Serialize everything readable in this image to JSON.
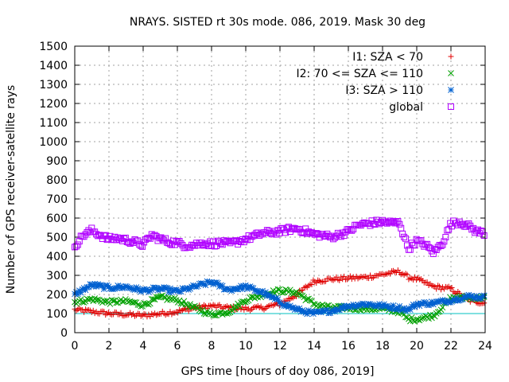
{
  "chart_data": {
    "type": "scatter",
    "title": "NRAYS. SISTED rt 30s mode. 086, 2019. Mask 30 deg",
    "xlabel": "GPS time [hours of doy 086, 2019]",
    "ylabel": "Number of GPS receiver-satellite rays",
    "xlim": [
      0,
      24
    ],
    "ylim": [
      0,
      1500
    ],
    "xticks": [
      0,
      2,
      4,
      6,
      8,
      10,
      12,
      14,
      16,
      18,
      20,
      22,
      24
    ],
    "yticks": [
      0,
      100,
      200,
      300,
      400,
      500,
      600,
      700,
      800,
      900,
      1000,
      1100,
      1200,
      1300,
      1400,
      1500
    ],
    "grid": true,
    "legend_position": "top-right",
    "reference_line": {
      "y": 100,
      "color": "#00c0c0"
    },
    "series": [
      {
        "name": "I1: SZA < 70",
        "marker": "plus",
        "color": "#e00000",
        "x": [
          0,
          1,
          2,
          3,
          4,
          5,
          6,
          7,
          8,
          9,
          10,
          11,
          12,
          13,
          14,
          15,
          16,
          17,
          18,
          19,
          19.5,
          20,
          21,
          22,
          23,
          24
        ],
        "y": [
          120,
          110,
          100,
          95,
          90,
          100,
          110,
          130,
          140,
          130,
          125,
          130,
          150,
          200,
          270,
          280,
          285,
          290,
          305,
          320,
          290,
          280,
          240,
          230,
          170,
          155
        ]
      },
      {
        "name": "I2: 70 <= SZA <= 110",
        "marker": "cross",
        "color": "#00a000",
        "x": [
          0,
          1,
          2,
          3,
          4,
          5,
          6,
          7,
          8,
          9,
          10,
          11,
          12,
          13,
          14,
          15,
          16,
          17,
          18,
          19,
          19.5,
          20,
          21,
          22,
          23,
          24
        ],
        "y": [
          160,
          175,
          160,
          165,
          145,
          185,
          170,
          130,
          95,
          110,
          170,
          200,
          220,
          210,
          150,
          130,
          130,
          125,
          125,
          110,
          70,
          70,
          90,
          180,
          185,
          180
        ]
      },
      {
        "name": "I3: SZA > 110",
        "marker": "star",
        "color": "#0060d0",
        "x": [
          0,
          1,
          2,
          3,
          4,
          5,
          6,
          7,
          8,
          9,
          10,
          11,
          12,
          13,
          14,
          15,
          16,
          17,
          18,
          19,
          19.5,
          20,
          21,
          22,
          23,
          24
        ],
        "y": [
          200,
          250,
          235,
          240,
          220,
          230,
          215,
          240,
          265,
          225,
          240,
          210,
          160,
          120,
          100,
          115,
          140,
          150,
          140,
          130,
          120,
          150,
          155,
          170,
          190,
          185
        ]
      },
      {
        "name": "global",
        "marker": "box",
        "color": "#b000ff",
        "x": [
          0,
          0.5,
          1,
          1.5,
          2,
          2.5,
          3,
          3.5,
          4,
          4.5,
          5,
          5.5,
          6,
          6.5,
          7,
          7.5,
          8,
          8.5,
          9,
          9.5,
          10,
          10.5,
          11,
          11.5,
          12,
          12.5,
          13,
          13.5,
          14,
          14.5,
          15,
          15.5,
          16,
          16.5,
          17,
          17.5,
          18,
          18.5,
          19,
          19.5,
          20,
          20.5,
          21,
          21.5,
          22,
          22.5,
          23,
          23.5,
          24
        ],
        "y": [
          455,
          510,
          535,
          510,
          490,
          495,
          485,
          475,
          460,
          510,
          490,
          475,
          470,
          455,
          460,
          470,
          465,
          470,
          465,
          475,
          490,
          505,
          520,
          525,
          530,
          540,
          545,
          530,
          515,
          510,
          500,
          515,
          530,
          560,
          570,
          575,
          580,
          575,
          575,
          440,
          480,
          460,
          420,
          470,
          570,
          580,
          560,
          530,
          520
        ]
      }
    ]
  }
}
